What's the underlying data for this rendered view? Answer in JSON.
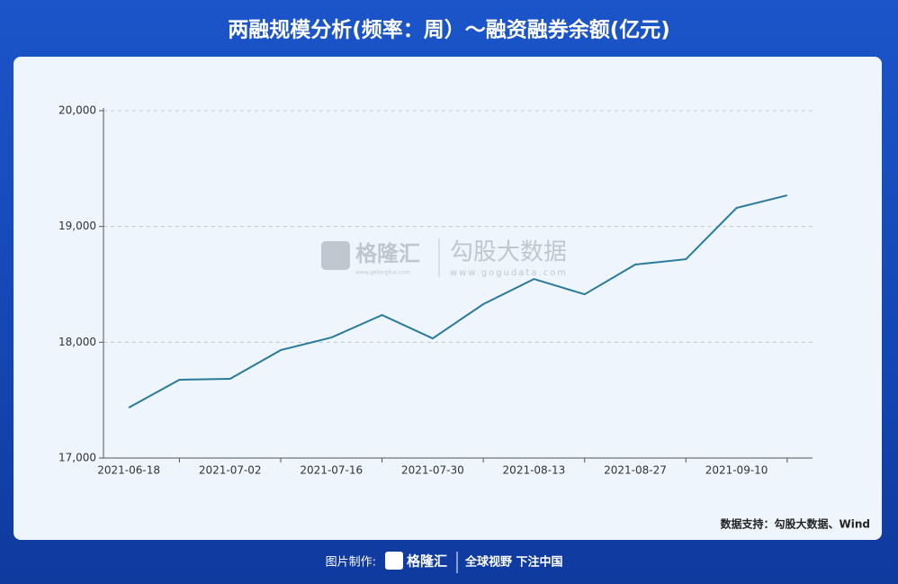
{
  "header": {
    "title": "两融规模分析(频率：周）～融资融券余额(亿元)"
  },
  "chart_data": {
    "type": "line",
    "categories": [
      "2021-06-18",
      null,
      "2021-07-02",
      null,
      "2021-07-16",
      null,
      "2021-07-30",
      null,
      "2021-08-13",
      null,
      "2021-08-27",
      null,
      "2021-09-10",
      null
    ],
    "series": [
      {
        "color": "#2a7a9b",
        "values": [
          17435,
          17676,
          17684,
          17932,
          18041,
          18235,
          18033,
          18329,
          18546,
          18414,
          18671,
          18717,
          19160,
          19269
        ]
      }
    ],
    "ylim": [
      17000,
      20000
    ],
    "yticks": [
      {
        "value": 17000,
        "label": "17,000"
      },
      {
        "value": 18000,
        "label": "18,000"
      },
      {
        "value": 19000,
        "label": "19,000"
      },
      {
        "value": 20000,
        "label": "20,000"
      }
    ],
    "grid": true
  },
  "watermark": {
    "brand": "格隆汇",
    "brand_url": "www.gelonghui.com",
    "name": "勾股大数据",
    "url": "www.gogudata.com"
  },
  "source": "数据支持：勾股大数据、Wind",
  "footer": {
    "made_by": "图片制作:",
    "brand": "格隆汇",
    "slogan": "全球视野 下注中国"
  }
}
